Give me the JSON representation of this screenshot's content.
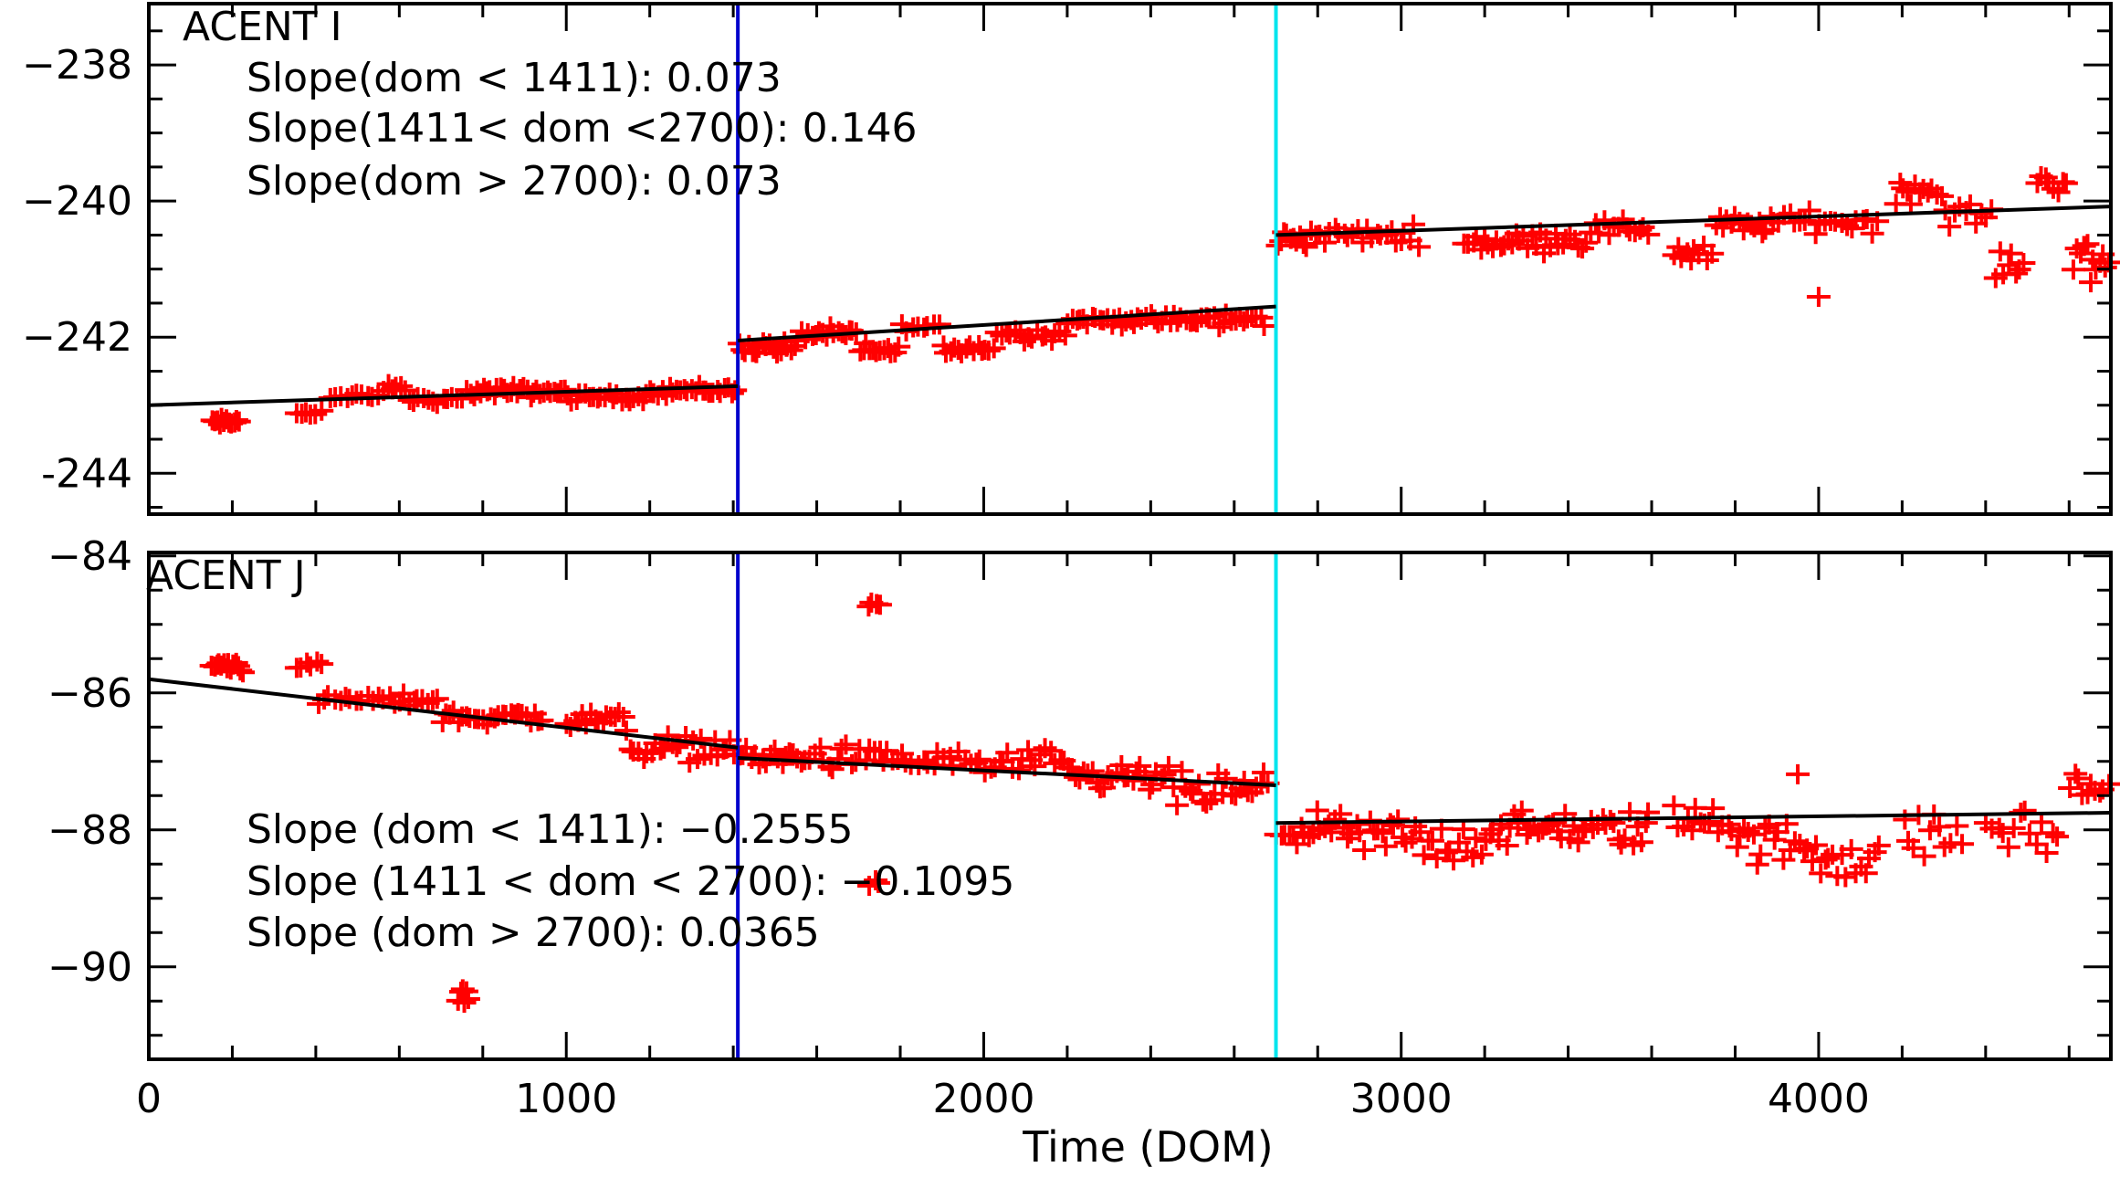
{
  "chart_data": [
    {
      "type": "scatter",
      "panel_label": "ACENT I",
      "x_range": [
        0,
        4700
      ],
      "ylim": [
        -244.6,
        -237.1
      ],
      "y_ticks": [
        -238,
        -240,
        -242,
        -244
      ],
      "y_tick_labels": [
        "−238",
        "−240",
        "−242",
        "-244"
      ],
      "annotations": [
        "Slope(dom < 1411): 0.073",
        "Slope(1411< dom <2700): 0.146",
        "Slope(dom > 2700): 0.073"
      ],
      "vlines": [
        {
          "x": 1411,
          "color": "#0000cc"
        },
        {
          "x": 2700,
          "color": "#00e5ee"
        }
      ],
      "fit_segments": [
        {
          "x": [
            0,
            1411
          ],
          "y": [
            -243.0,
            -242.72
          ]
        },
        {
          "x": [
            1411,
            2700
          ],
          "y": [
            -242.05,
            -241.55
          ]
        },
        {
          "x": [
            2700,
            4700
          ],
          "y": [
            -240.5,
            -240.08
          ]
        }
      ],
      "clusters": [
        {
          "x0": 150,
          "x1": 220,
          "y": -243.25,
          "sd": 0.07,
          "n": 12
        },
        {
          "x0": 350,
          "x1": 420,
          "y": -243.1,
          "sd": 0.06,
          "n": 6
        },
        {
          "x0": 430,
          "x1": 560,
          "y": -242.88,
          "sd": 0.07,
          "n": 10
        },
        {
          "x0": 560,
          "x1": 620,
          "y": -242.75,
          "sd": 0.06,
          "n": 6
        },
        {
          "x0": 620,
          "x1": 760,
          "y": -242.92,
          "sd": 0.06,
          "n": 12
        },
        {
          "x0": 760,
          "x1": 1000,
          "y": -242.8,
          "sd": 0.09,
          "n": 30
        },
        {
          "x0": 1000,
          "x1": 1200,
          "y": -242.88,
          "sd": 0.07,
          "n": 20
        },
        {
          "x0": 1200,
          "x1": 1411,
          "y": -242.78,
          "sd": 0.09,
          "n": 24
        },
        {
          "x0": 1411,
          "x1": 1560,
          "y": -242.15,
          "sd": 0.12,
          "n": 18
        },
        {
          "x0": 1560,
          "x1": 1700,
          "y": -241.95,
          "sd": 0.1,
          "n": 16
        },
        {
          "x0": 1700,
          "x1": 1800,
          "y": -242.2,
          "sd": 0.12,
          "n": 12
        },
        {
          "x0": 1800,
          "x1": 1900,
          "y": -241.85,
          "sd": 0.06,
          "n": 8
        },
        {
          "x0": 1900,
          "x1": 2030,
          "y": -242.15,
          "sd": 0.18,
          "n": 14
        },
        {
          "x0": 2030,
          "x1": 2200,
          "y": -241.95,
          "sd": 0.1,
          "n": 16
        },
        {
          "x0": 2200,
          "x1": 2480,
          "y": -241.75,
          "sd": 0.1,
          "n": 30
        },
        {
          "x0": 2480,
          "x1": 2680,
          "y": -241.75,
          "sd": 0.13,
          "n": 20
        },
        {
          "x0": 2700,
          "x1": 2780,
          "y": -240.55,
          "sd": 0.15,
          "n": 10
        },
        {
          "x0": 2780,
          "x1": 3050,
          "y": -240.5,
          "sd": 0.15,
          "n": 24
        },
        {
          "x0": 3150,
          "x1": 3300,
          "y": -240.6,
          "sd": 0.15,
          "n": 16
        },
        {
          "x0": 3300,
          "x1": 3450,
          "y": -240.55,
          "sd": 0.2,
          "n": 16
        },
        {
          "x0": 3450,
          "x1": 3600,
          "y": -240.4,
          "sd": 0.15,
          "n": 14
        },
        {
          "x0": 3650,
          "x1": 3750,
          "y": -240.75,
          "sd": 0.25,
          "n": 10
        },
        {
          "x0": 3750,
          "x1": 3900,
          "y": -240.35,
          "sd": 0.15,
          "n": 16
        },
        {
          "x0": 3900,
          "x1": 4150,
          "y": -240.3,
          "sd": 0.18,
          "n": 20
        },
        {
          "x0": 4180,
          "x1": 4300,
          "y": -239.85,
          "sd": 0.2,
          "n": 12
        },
        {
          "x0": 4300,
          "x1": 4420,
          "y": -240.2,
          "sd": 0.18,
          "n": 10
        },
        {
          "x0": 4420,
          "x1": 4500,
          "y": -240.95,
          "sd": 0.2,
          "n": 8
        },
        {
          "x0": 4520,
          "x1": 4600,
          "y": -239.7,
          "sd": 0.18,
          "n": 8
        },
        {
          "x0": 4610,
          "x1": 4700,
          "y": -240.9,
          "sd": 0.5,
          "n": 12
        },
        {
          "x0": 4000,
          "x1": 4000,
          "y": -241.4,
          "sd": 0.02,
          "n": 1
        }
      ]
    },
    {
      "type": "scatter",
      "panel_label": "ACENT J",
      "x_range": [
        0,
        4700
      ],
      "ylim": [
        -91.35,
        -83.95
      ],
      "y_ticks": [
        -84,
        -86,
        -88,
        -90
      ],
      "y_tick_labels": [
        "−84",
        "−86",
        "−88",
        "−90"
      ],
      "annotations": [
        "Slope (dom < 1411): −0.2555",
        "Slope (1411 < dom < 2700): −0.1095",
        "Slope (dom > 2700): 0.0365"
      ],
      "vlines": [
        {
          "x": 1411,
          "color": "#0000cc"
        },
        {
          "x": 2700,
          "color": "#00e5ee"
        }
      ],
      "fit_segments": [
        {
          "x": [
            0,
            1411
          ],
          "y": [
            -85.8,
            -86.8
          ]
        },
        {
          "x": [
            1411,
            2700
          ],
          "y": [
            -86.95,
            -87.35
          ]
        },
        {
          "x": [
            2700,
            4700
          ],
          "y": [
            -87.9,
            -87.75
          ]
        }
      ],
      "clusters": [
        {
          "x0": 150,
          "x1": 230,
          "y": -85.6,
          "sd": 0.12,
          "n": 14
        },
        {
          "x0": 350,
          "x1": 420,
          "y": -85.6,
          "sd": 0.08,
          "n": 6
        },
        {
          "x0": 400,
          "x1": 560,
          "y": -86.1,
          "sd": 0.08,
          "n": 12
        },
        {
          "x0": 560,
          "x1": 700,
          "y": -86.1,
          "sd": 0.1,
          "n": 12
        },
        {
          "x0": 700,
          "x1": 950,
          "y": -86.35,
          "sd": 0.12,
          "n": 26
        },
        {
          "x0": 1000,
          "x1": 1150,
          "y": -86.4,
          "sd": 0.2,
          "n": 16
        },
        {
          "x0": 1150,
          "x1": 1411,
          "y": -86.8,
          "sd": 0.2,
          "n": 26
        },
        {
          "x0": 1411,
          "x1": 1560,
          "y": -86.95,
          "sd": 0.2,
          "n": 16
        },
        {
          "x0": 1560,
          "x1": 1800,
          "y": -86.95,
          "sd": 0.2,
          "n": 22
        },
        {
          "x0": 1800,
          "x1": 2000,
          "y": -87.0,
          "sd": 0.2,
          "n": 16
        },
        {
          "x0": 2000,
          "x1": 2200,
          "y": -87.05,
          "sd": 0.25,
          "n": 18
        },
        {
          "x0": 2200,
          "x1": 2450,
          "y": -87.25,
          "sd": 0.25,
          "n": 26
        },
        {
          "x0": 2450,
          "x1": 2690,
          "y": -87.45,
          "sd": 0.3,
          "n": 24
        },
        {
          "x0": 2700,
          "x1": 2850,
          "y": -88.0,
          "sd": 0.25,
          "n": 16
        },
        {
          "x0": 2850,
          "x1": 3050,
          "y": -88.1,
          "sd": 0.35,
          "n": 20
        },
        {
          "x0": 3050,
          "x1": 3200,
          "y": -88.2,
          "sd": 0.35,
          "n": 14
        },
        {
          "x0": 3200,
          "x1": 3450,
          "y": -88.0,
          "sd": 0.3,
          "n": 26
        },
        {
          "x0": 3450,
          "x1": 3600,
          "y": -88.0,
          "sd": 0.3,
          "n": 16
        },
        {
          "x0": 3650,
          "x1": 3800,
          "y": -87.8,
          "sd": 0.4,
          "n": 14
        },
        {
          "x0": 3800,
          "x1": 4000,
          "y": -88.2,
          "sd": 0.35,
          "n": 20
        },
        {
          "x0": 4000,
          "x1": 4150,
          "y": -88.4,
          "sd": 0.4,
          "n": 14
        },
        {
          "x0": 4200,
          "x1": 4350,
          "y": -88.1,
          "sd": 0.35,
          "n": 12
        },
        {
          "x0": 4400,
          "x1": 4580,
          "y": -88.0,
          "sd": 0.4,
          "n": 14
        },
        {
          "x0": 4600,
          "x1": 4700,
          "y": -87.4,
          "sd": 0.3,
          "n": 10
        },
        {
          "x0": 1720,
          "x1": 1760,
          "y": -84.7,
          "sd": 0.05,
          "n": 4
        },
        {
          "x0": 740,
          "x1": 770,
          "y": -90.45,
          "sd": 0.15,
          "n": 6
        },
        {
          "x0": 1720,
          "x1": 1760,
          "y": -88.8,
          "sd": 0.1,
          "n": 3
        },
        {
          "x0": 3950,
          "x1": 3950,
          "y": -87.2,
          "sd": 0.02,
          "n": 1
        }
      ]
    }
  ],
  "x_axis": {
    "ticks": [
      0,
      1000,
      2000,
      3000,
      4000
    ],
    "tick_labels": [
      "0",
      "1000",
      "2000",
      "3000",
      "4000"
    ],
    "title": "Time (DOM)"
  },
  "colors": {
    "points": "#ff0000",
    "fit": "#000000",
    "frame": "#000000"
  }
}
